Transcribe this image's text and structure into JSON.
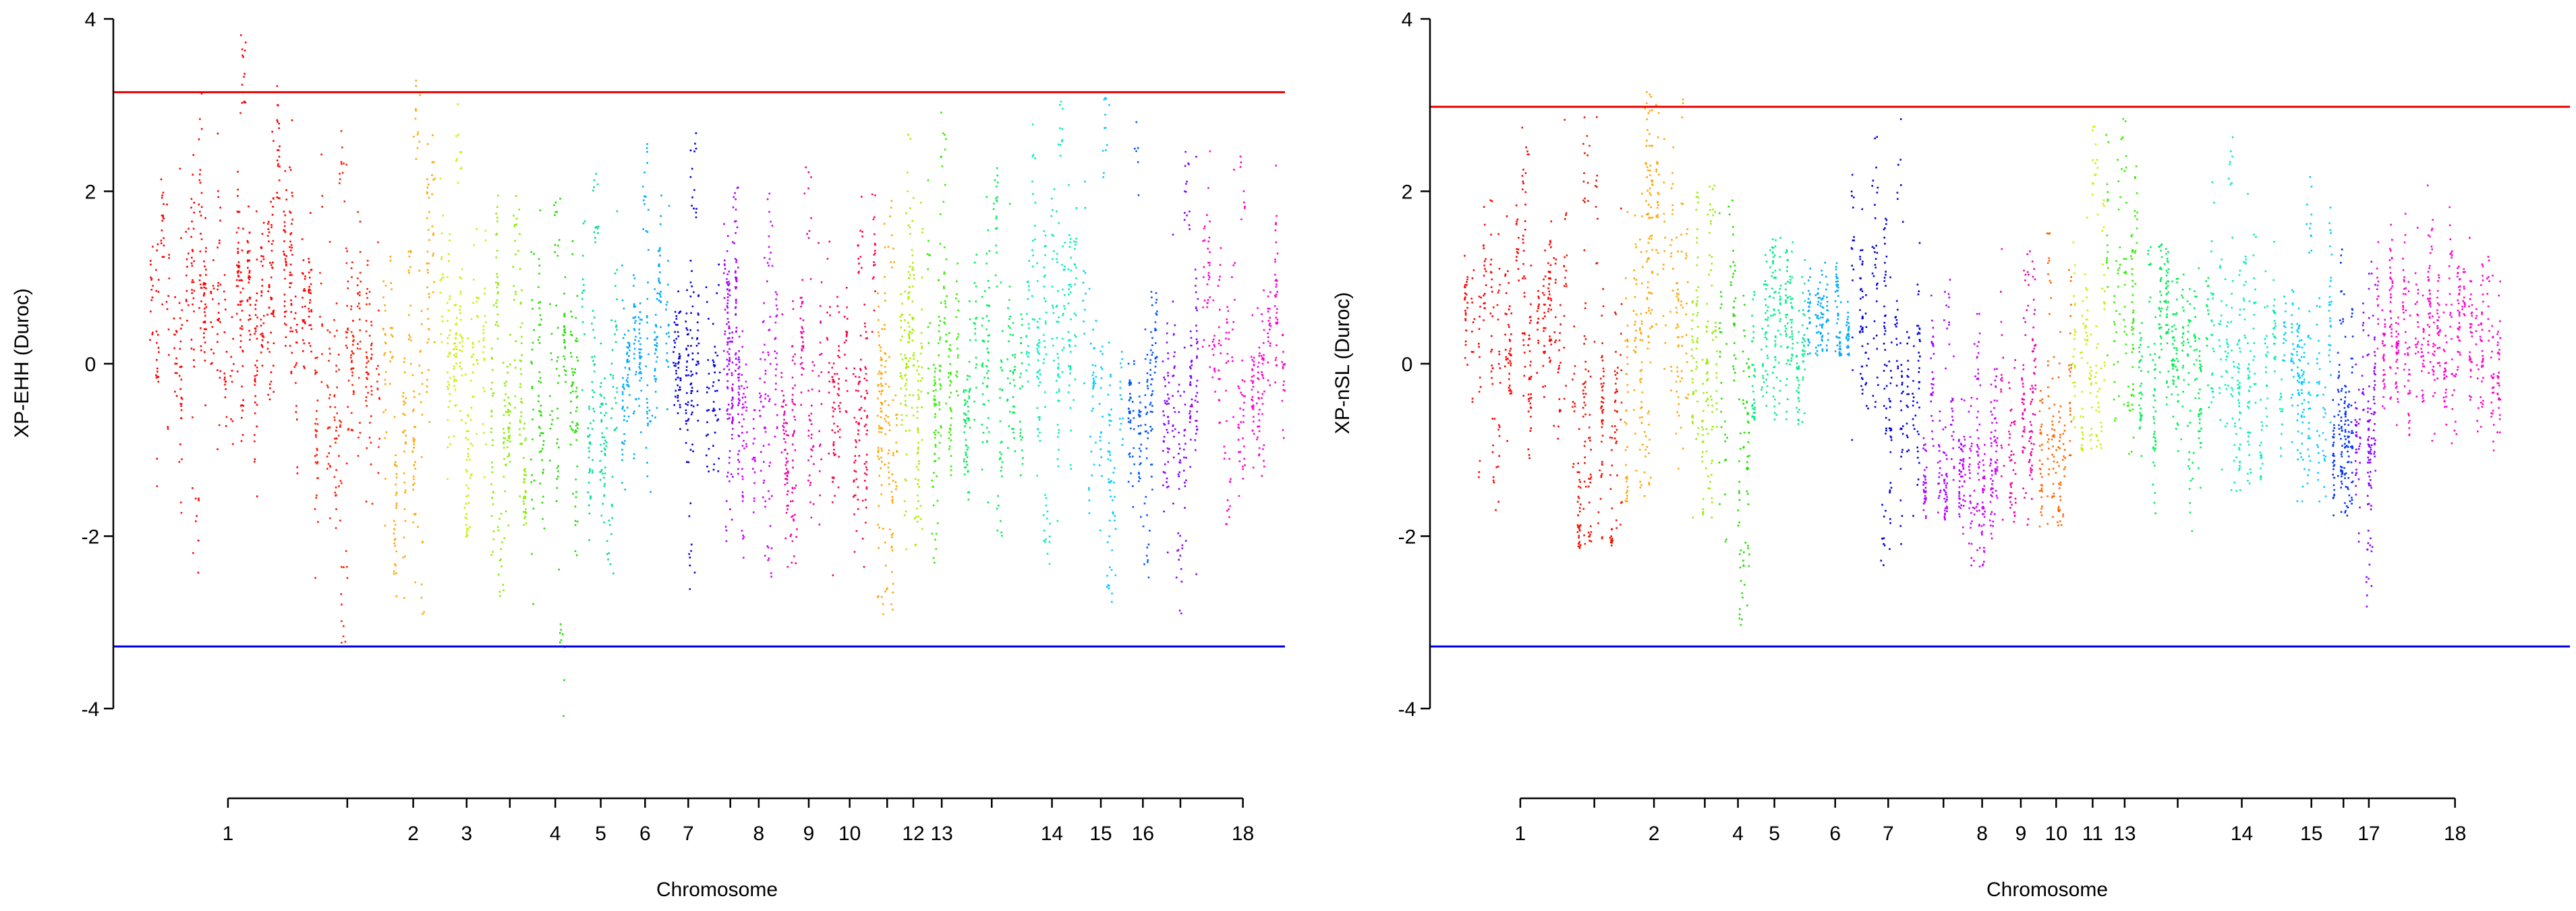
{
  "chart_data": [
    {
      "type": "scatter",
      "title": "",
      "xlabel": "Chromosome",
      "ylabel": "XP-EHH (Duroc)",
      "ylim": [
        -4,
        4
      ],
      "yticks": [
        -4,
        -2,
        0,
        2,
        4
      ],
      "thresholds": {
        "upper": 3.15,
        "lower": -3.28
      },
      "grid": false,
      "x_unit": "cumulative position (0 to 100, chromosome order)",
      "chromosomes": [
        {
          "label": "1",
          "start": 0.0,
          "end": 14.5,
          "tick": 7.0,
          "color": "#ff0000",
          "mean": 0.9,
          "spread": 1.15,
          "top": 3.85,
          "bottom": -2.5
        },
        {
          "label": "",
          "start": 14.5,
          "end": 20.5,
          "tick": 17.5,
          "color": "#ff1a00",
          "mean": -0.2,
          "spread": 1.2,
          "top": 2.9,
          "bottom": -3.25
        },
        {
          "label": "2",
          "start": 20.5,
          "end": 25.5,
          "tick": 23.3,
          "color": "#ffa500",
          "mean": -0.1,
          "spread": 1.25,
          "top": 3.4,
          "bottom": -2.9
        },
        {
          "label": "3",
          "start": 25.5,
          "end": 30.0,
          "tick": 28.0,
          "color": "#ccee00",
          "mean": -0.2,
          "spread": 1.0,
          "top": 3.1,
          "bottom": -2.0
        },
        {
          "label": "",
          "start": 30.0,
          "end": 33.5,
          "tick": 31.8,
          "color": "#88ee00",
          "mean": -0.4,
          "spread": 1.05,
          "top": 2.0,
          "bottom": -2.8
        },
        {
          "label": "4",
          "start": 33.5,
          "end": 38.0,
          "tick": 35.8,
          "color": "#22dd00",
          "mean": -0.5,
          "spread": 1.1,
          "top": 2.0,
          "bottom": -4.1
        },
        {
          "label": "5",
          "start": 38.0,
          "end": 41.5,
          "tick": 39.8,
          "color": "#00dd99",
          "mean": -0.2,
          "spread": 0.95,
          "top": 2.4,
          "bottom": -2.6
        },
        {
          "label": "6",
          "start": 41.5,
          "end": 46.0,
          "tick": 43.7,
          "color": "#00aaff",
          "mean": 0.1,
          "spread": 0.9,
          "top": 2.6,
          "bottom": -1.6
        },
        {
          "label": "7",
          "start": 46.0,
          "end": 50.5,
          "tick": 47.5,
          "color": "#0000dd",
          "mean": 0.1,
          "spread": 0.95,
          "top": 2.8,
          "bottom": -2.7
        },
        {
          "label": "",
          "start": 50.5,
          "end": 52.0,
          "tick": 51.2,
          "color": "#aa00ff",
          "mean": 0.1,
          "spread": 0.9,
          "top": 2.2,
          "bottom": -2.1
        },
        {
          "label": "8",
          "start": 52.0,
          "end": 55.5,
          "tick": 53.7,
          "color": "#cc00ff",
          "mean": -0.6,
          "spread": 0.95,
          "top": 2.0,
          "bottom": -2.5
        },
        {
          "label": "9",
          "start": 55.5,
          "end": 59.5,
          "tick": 58.1,
          "color": "#ee00aa",
          "mean": -0.5,
          "spread": 1.0,
          "top": 2.5,
          "bottom": -2.5
        },
        {
          "label": "10",
          "start": 59.5,
          "end": 64.0,
          "tick": 61.7,
          "color": "#ff0044",
          "mean": -0.5,
          "spread": 1.0,
          "top": 2.0,
          "bottom": -2.5
        },
        {
          "label": "",
          "start": 64.0,
          "end": 66.0,
          "tick": 65.0,
          "color": "#ffa500",
          "mean": -0.4,
          "spread": 1.0,
          "top": 2.1,
          "bottom": -2.9
        },
        {
          "label": "12",
          "start": 66.0,
          "end": 68.3,
          "tick": 67.3,
          "color": "#aaee00",
          "mean": 0.1,
          "spread": 1.1,
          "top": 2.8,
          "bottom": -2.2
        },
        {
          "label": "13",
          "start": 68.3,
          "end": 71.5,
          "tick": 69.8,
          "color": "#33ee00",
          "mean": 0.1,
          "spread": 1.0,
          "top": 2.95,
          "bottom": -2.3
        },
        {
          "label": "",
          "start": 71.5,
          "end": 77.0,
          "tick": 74.2,
          "color": "#00ee55",
          "mean": -0.2,
          "spread": 1.0,
          "top": 2.3,
          "bottom": -2.0
        },
        {
          "label": "14",
          "start": 77.0,
          "end": 82.0,
          "tick": 79.5,
          "color": "#00eebb",
          "mean": 0.4,
          "spread": 1.1,
          "top": 3.5,
          "bottom": -2.5
        },
        {
          "label": "15",
          "start": 82.0,
          "end": 86.0,
          "tick": 83.8,
          "color": "#00ccff",
          "mean": -0.2,
          "spread": 1.0,
          "top": 3.25,
          "bottom": -2.8
        },
        {
          "label": "16",
          "start": 86.0,
          "end": 89.0,
          "tick": 87.5,
          "color": "#0055ff",
          "mean": -0.3,
          "spread": 0.9,
          "top": 2.85,
          "bottom": -2.6
        },
        {
          "label": "",
          "start": 89.0,
          "end": 92.5,
          "tick": 90.8,
          "color": "#8800ff",
          "mean": -0.9,
          "spread": 0.95,
          "top": 2.6,
          "bottom": -3.1
        },
        {
          "label": "18",
          "start": 92.5,
          "end": 100.0,
          "tick": 96.3,
          "color": "#ff00cc",
          "mean": 0.1,
          "spread": 0.95,
          "top": 2.6,
          "bottom": -2.0
        }
      ]
    },
    {
      "type": "scatter",
      "title": "",
      "xlabel": "Chromosome",
      "ylabel": "XP-nSL (Duroc)",
      "ylim": [
        -4,
        4
      ],
      "yticks": [
        -4,
        -2,
        0,
        2,
        4
      ],
      "thresholds": {
        "upper": 2.98,
        "lower": -3.28
      },
      "grid": false,
      "x_unit": "cumulative position (0 to 100, chromosome order)",
      "chromosomes": [
        {
          "label": "1",
          "start": 0.0,
          "end": 9.0,
          "tick": 5.0,
          "color": "#ff0000",
          "mean": 0.5,
          "spread": 1.0,
          "top": 3.05,
          "bottom": -1.7
        },
        {
          "label": "",
          "start": 9.0,
          "end": 14.5,
          "tick": 11.7,
          "color": "#ee1100",
          "mean": -0.4,
          "spread": 1.3,
          "top": 2.9,
          "bottom": -2.15
        },
        {
          "label": "2",
          "start": 14.5,
          "end": 20.5,
          "tick": 17.1,
          "color": "#ffa500",
          "mean": 0.2,
          "spread": 1.3,
          "top": 3.2,
          "bottom": -1.6
        },
        {
          "label": "",
          "start": 20.5,
          "end": 23.0,
          "tick": 21.7,
          "color": "#99ee00",
          "mean": -0.2,
          "spread": 1.0,
          "top": 2.1,
          "bottom": -2.0
        },
        {
          "label": "4",
          "start": 23.0,
          "end": 26.0,
          "tick": 24.7,
          "color": "#22dd00",
          "mean": -0.6,
          "spread": 1.1,
          "top": 2.0,
          "bottom": -3.1
        },
        {
          "label": "5",
          "start": 26.0,
          "end": 31.0,
          "tick": 28.0,
          "color": "#00ee88",
          "mean": 0.3,
          "spread": 0.8,
          "top": 1.5,
          "bottom": -0.7
        },
        {
          "label": "6",
          "start": 31.0,
          "end": 35.0,
          "tick": 33.5,
          "color": "#00aaff",
          "mean": 0.5,
          "spread": 0.5,
          "top": 1.2,
          "bottom": 0.1
        },
        {
          "label": "7",
          "start": 35.0,
          "end": 41.5,
          "tick": 38.3,
          "color": "#0000dd",
          "mean": 0.1,
          "spread": 1.0,
          "top": 2.85,
          "bottom": -2.4
        },
        {
          "label": "",
          "start": 41.5,
          "end": 45.0,
          "tick": 43.3,
          "color": "#aa00ff",
          "mean": -1.0,
          "spread": 0.8,
          "top": 1.0,
          "bottom": -1.8
        },
        {
          "label": "8",
          "start": 45.0,
          "end": 48.5,
          "tick": 46.8,
          "color": "#cc00ff",
          "mean": -1.2,
          "spread": 0.8,
          "top": 0.8,
          "bottom": -2.4
        },
        {
          "label": "9",
          "start": 48.5,
          "end": 52.0,
          "tick": 50.3,
          "color": "#ee00aa",
          "mean": -0.6,
          "spread": 0.8,
          "top": 1.4,
          "bottom": -1.9
        },
        {
          "label": "10",
          "start": 52.0,
          "end": 55.0,
          "tick": 53.5,
          "color": "#ff6600",
          "mean": -0.6,
          "spread": 0.9,
          "top": 1.6,
          "bottom": -1.9
        },
        {
          "label": "11",
          "start": 55.0,
          "end": 58.0,
          "tick": 56.8,
          "color": "#ccee00",
          "mean": 0.2,
          "spread": 1.0,
          "top": 2.8,
          "bottom": -1.0
        },
        {
          "label": "13",
          "start": 58.0,
          "end": 61.0,
          "tick": 59.7,
          "color": "#33ee00",
          "mean": 0.8,
          "spread": 1.0,
          "top": 2.9,
          "bottom": -1.1
        },
        {
          "label": "",
          "start": 61.0,
          "end": 67.5,
          "tick": 64.5,
          "color": "#00ee55",
          "mean": 0.1,
          "spread": 0.8,
          "top": 1.4,
          "bottom": -2.1
        },
        {
          "label": "14",
          "start": 67.5,
          "end": 74.0,
          "tick": 70.3,
          "color": "#00eebb",
          "mean": 0.2,
          "spread": 1.0,
          "top": 2.85,
          "bottom": -1.5
        },
        {
          "label": "15",
          "start": 74.0,
          "end": 78.5,
          "tick": 76.6,
          "color": "#00ccff",
          "mean": -0.1,
          "spread": 0.9,
          "top": 2.3,
          "bottom": -1.6
        },
        {
          "label": "",
          "start": 78.5,
          "end": 80.5,
          "tick": 79.5,
          "color": "#0033ff",
          "mean": -0.8,
          "spread": 0.8,
          "top": 1.5,
          "bottom": -1.8
        },
        {
          "label": "17",
          "start": 80.5,
          "end": 82.5,
          "tick": 81.8,
          "color": "#8800ff",
          "mean": -1.0,
          "spread": 0.9,
          "top": 1.2,
          "bottom": -3.0
        },
        {
          "label": "18",
          "start": 82.5,
          "end": 94.0,
          "tick": 89.6,
          "color": "#ff00cc",
          "mean": 0.4,
          "spread": 0.8,
          "top": 2.1,
          "bottom": -1.0
        }
      ]
    }
  ]
}
